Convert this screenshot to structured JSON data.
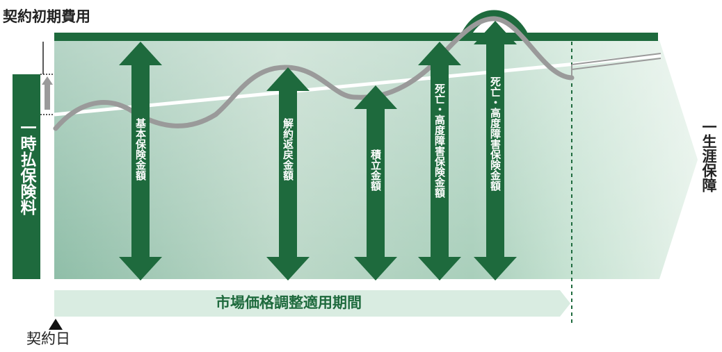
{
  "labels": {
    "initial_cost": "契約初期費用",
    "lump_sum_premium": "一時払保険料",
    "basic_sum_insured": "基本保険金額",
    "surrender_value": "解約返戻金額",
    "accumulated_amount": "積立金額",
    "death_disability_benefit": "死亡・高度障害保険金額",
    "lifetime_coverage": "一生涯保障",
    "adjustment_period": "市場価格調整適用期間",
    "contract_date": "契約日"
  },
  "colors": {
    "dark_green": "#1e6a3d",
    "light_green": "#d9ece1",
    "wave_grey": "#9a9a9a"
  }
}
